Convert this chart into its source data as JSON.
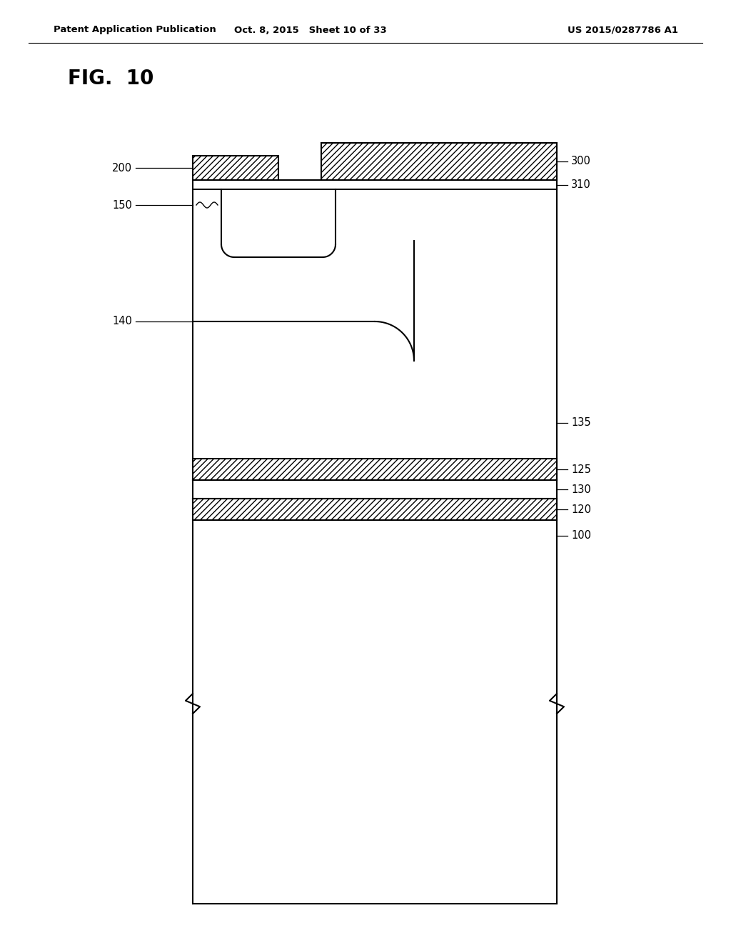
{
  "bg_color": "#ffffff",
  "fig_label": "FIG.  10",
  "header_left": "Patent Application Publication",
  "header_mid": "Oct. 8, 2015   Sheet 10 of 33",
  "header_right": "US 2015/0287786 A1",
  "line_color": "#000000"
}
